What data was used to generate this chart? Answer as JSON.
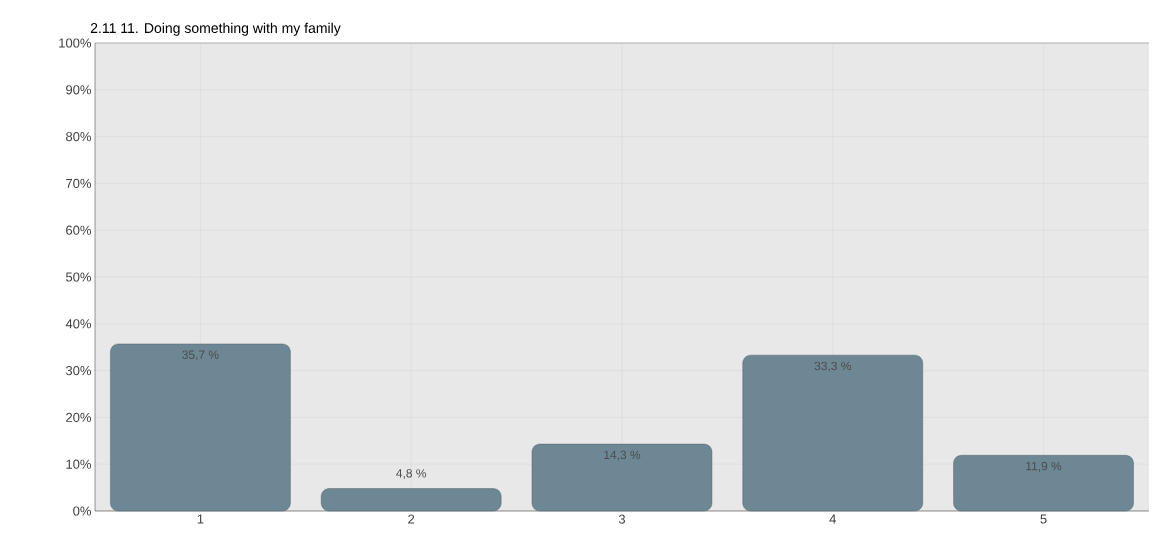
{
  "chart_data": {
    "type": "bar",
    "title": "2.11 11. Doing something with my family",
    "categories": [
      "1",
      "2",
      "3",
      "4",
      "5"
    ],
    "values": [
      35.7,
      4.8,
      14.3,
      33.3,
      11.9
    ],
    "value_labels": [
      "35,7 %",
      "4,8 %",
      "14,3 %",
      "33,3 %",
      "11,9 %"
    ],
    "color": "#6e8794",
    "ylim": [
      0,
      100
    ],
    "yticks": [
      {
        "value": 0,
        "label": "0%"
      },
      {
        "value": 10,
        "label": "10%"
      },
      {
        "value": 20,
        "label": "20%"
      },
      {
        "value": 30,
        "label": "30%"
      },
      {
        "value": 40,
        "label": "40%"
      },
      {
        "value": 50,
        "label": "50%"
      },
      {
        "value": 60,
        "label": "60%"
      },
      {
        "value": 70,
        "label": "70%"
      },
      {
        "value": 80,
        "label": "80%"
      },
      {
        "value": 90,
        "label": "90%"
      },
      {
        "value": 100,
        "label": "100%"
      }
    ],
    "grid": true
  }
}
